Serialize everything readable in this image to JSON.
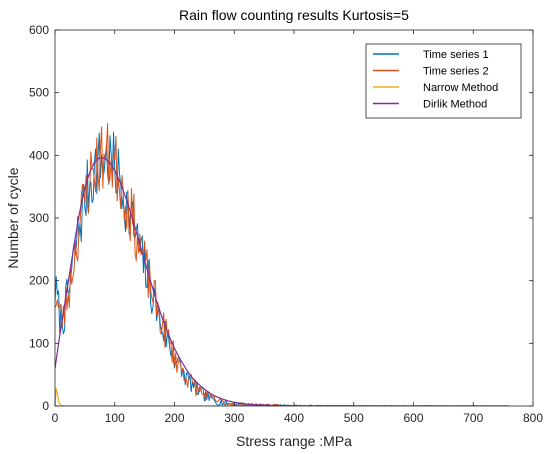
{
  "chart_data": {
    "type": "line",
    "title": "Rain flow counting results Kurtosis=5",
    "xlabel": "Stress range :MPa",
    "ylabel": "Number of cycle",
    "xlim": [
      0,
      800
    ],
    "ylim": [
      0,
      600
    ],
    "xticks": [
      "0",
      "100",
      "200",
      "300",
      "400",
      "500",
      "600",
      "700",
      "800"
    ],
    "yticks": [
      "0",
      "100",
      "200",
      "300",
      "400",
      "500",
      "600"
    ],
    "grid": false,
    "legend_position": "top-right",
    "series": [
      {
        "name": "Time series 1",
        "color": "#0072BD",
        "style": "noisy",
        "seed": 7,
        "x_range": [
          0,
          760
        ],
        "x_step": 2,
        "noise": 0.09,
        "x": [
          0,
          4,
          8,
          12,
          16,
          20,
          25,
          30,
          40,
          50,
          60,
          70,
          80,
          90,
          100,
          110,
          120,
          130,
          140,
          150,
          160,
          170,
          180,
          190,
          200,
          210,
          220,
          230,
          240,
          250,
          260,
          270,
          280,
          290,
          300,
          320,
          340,
          360,
          380,
          400,
          450,
          500,
          760
        ],
        "y": [
          185,
          170,
          142,
          138,
          148,
          170,
          190,
          225,
          282,
          330,
          362,
          385,
          393,
          392,
          380,
          355,
          322,
          290,
          255,
          220,
          185,
          155,
          125,
          100,
          78,
          60,
          45,
          33,
          24,
          17,
          12,
          8,
          6,
          4,
          3,
          2,
          1.5,
          1,
          0.6,
          0.4,
          0.2,
          0.1,
          0
        ]
      },
      {
        "name": "Time series 2",
        "color": "#D95319",
        "style": "noisy",
        "seed": 23,
        "x_range": [
          0,
          760
        ],
        "x_step": 2,
        "noise": 0.1,
        "x": [
          0,
          4,
          8,
          12,
          16,
          20,
          25,
          30,
          40,
          50,
          60,
          70,
          80,
          90,
          100,
          110,
          120,
          130,
          140,
          150,
          160,
          170,
          180,
          190,
          200,
          210,
          220,
          230,
          240,
          250,
          260,
          270,
          280,
          290,
          300,
          320,
          340,
          360,
          380,
          400,
          450,
          500,
          760
        ],
        "y": [
          175,
          165,
          145,
          140,
          152,
          172,
          192,
          228,
          285,
          333,
          366,
          388,
          397,
          396,
          386,
          362,
          330,
          298,
          262,
          227,
          192,
          160,
          130,
          104,
          81,
          62,
          47,
          35,
          25,
          18,
          13,
          9,
          6,
          4,
          3,
          2,
          1.5,
          1,
          0.6,
          0.4,
          0.2,
          0.1,
          0
        ]
      },
      {
        "name": "Narrow Method",
        "color": "#EDB120",
        "style": "smooth",
        "x": [
          0,
          2,
          4,
          6,
          8,
          10,
          20,
          50,
          100,
          200,
          400,
          600,
          760
        ],
        "y": [
          0,
          28,
          20,
          8,
          3,
          1,
          0,
          0,
          0,
          0,
          0,
          0,
          0
        ]
      },
      {
        "name": "Dirlik Method",
        "color": "#7E2F8E",
        "style": "smooth",
        "x": [
          0,
          3,
          6,
          10,
          15,
          20,
          25,
          30,
          35,
          40,
          45,
          50,
          55,
          60,
          65,
          70,
          75,
          80,
          85,
          90,
          95,
          100,
          110,
          120,
          130,
          140,
          150,
          160,
          170,
          180,
          190,
          200,
          210,
          220,
          230,
          240,
          250,
          260,
          270,
          280,
          290,
          300,
          320,
          340,
          360,
          380,
          400,
          450,
          500,
          600,
          760
        ],
        "y": [
          60,
          80,
          100,
          125,
          155,
          185,
          215,
          245,
          275,
          303,
          327,
          348,
          364,
          377,
          387,
          393,
          396,
          396,
          394,
          390,
          384,
          376,
          355,
          328,
          298,
          265,
          232,
          199,
          167,
          139,
          114,
          92,
          74,
          58,
          45,
          35,
          27,
          20,
          15,
          11,
          8,
          6,
          3,
          1.8,
          1,
          0.5,
          0.3,
          0.1,
          0,
          0,
          0
        ]
      }
    ]
  }
}
